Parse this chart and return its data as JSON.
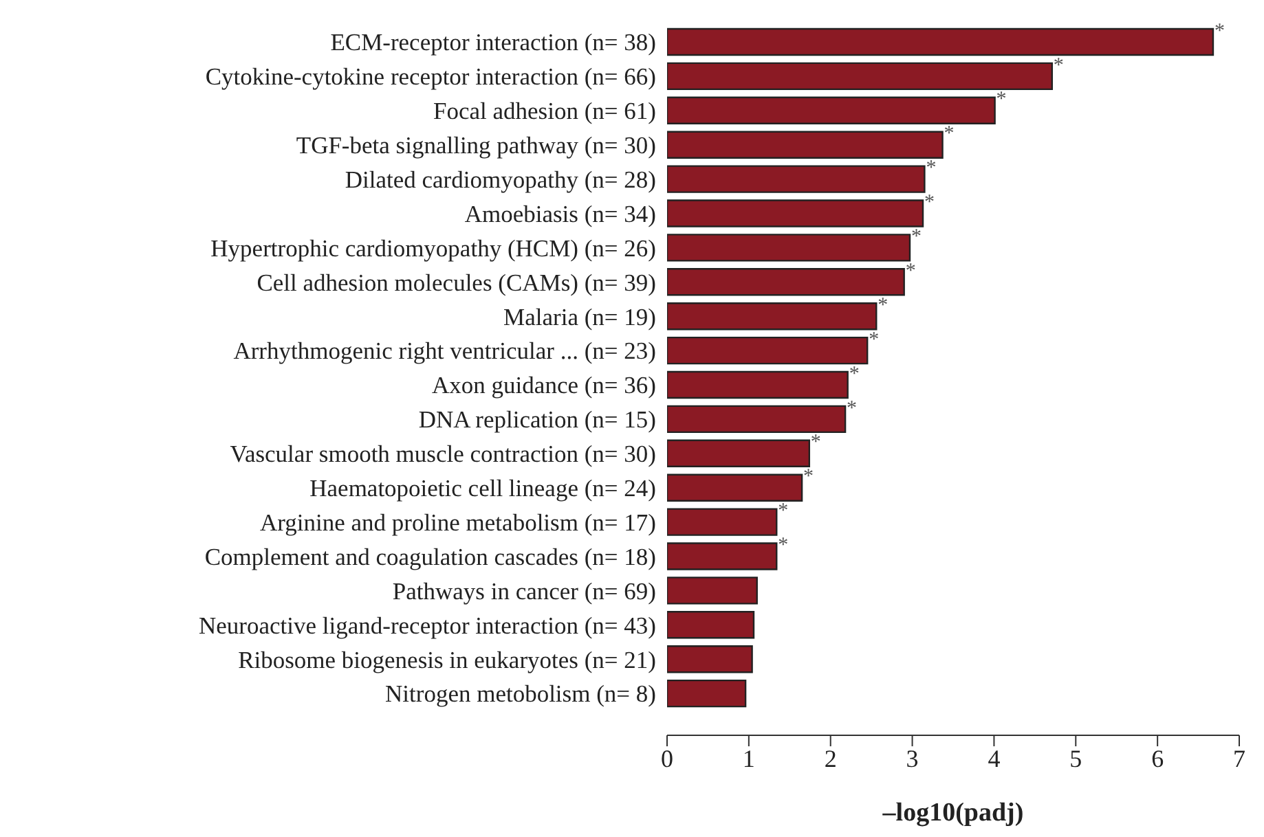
{
  "chart_data": {
    "type": "bar",
    "orientation": "horizontal",
    "xlabel": "–log10(padj)",
    "categories": [
      "ECM-receptor interaction (n= 38)",
      "Cytokine-cytokine receptor interaction (n= 66)",
      "Focal adhesion (n= 61)",
      "TGF-beta signalling pathway (n= 30)",
      "Dilated cardiomyopathy (n= 28)",
      "Amoebiasis (n= 34)",
      "Hypertrophic cardiomyopathy (HCM) (n= 26)",
      "Cell adhesion molecules (CAMs) (n= 39)",
      "Malaria (n= 19)",
      "Arrhythmogenic right ventricular ... (n= 23)",
      "Axon guidance (n= 36)",
      "DNA replication (n= 15)",
      "Vascular smooth muscle contraction (n= 30)",
      "Haematopoietic cell lineage (n= 24)",
      "Arginine and proline metabolism (n= 17)",
      "Complement and coagulation cascades (n= 18)",
      "Pathways in cancer (n= 69)",
      "Neuroactive ligand-receptor interaction (n= 43)",
      "Ribosome biogenesis in eukaryotes (n= 21)",
      "Nitrogen metobolism (n= 8)"
    ],
    "values": [
      6.68,
      4.71,
      4.01,
      3.37,
      3.15,
      3.13,
      2.97,
      2.9,
      2.56,
      2.45,
      2.21,
      2.18,
      1.74,
      1.65,
      1.34,
      1.34,
      1.1,
      1.06,
      1.04,
      0.96
    ],
    "value_labels": [
      "*",
      "*",
      "*",
      "*",
      "*",
      "*",
      "*",
      "*",
      "*",
      "*",
      "*",
      "*",
      "*",
      "*",
      "*",
      "*",
      null,
      null,
      null,
      null
    ],
    "color": "#8b1a24",
    "xlim": [
      0,
      7
    ],
    "xticks": [
      0,
      1,
      2,
      3,
      4,
      5,
      6,
      7
    ],
    "grid": false
  }
}
